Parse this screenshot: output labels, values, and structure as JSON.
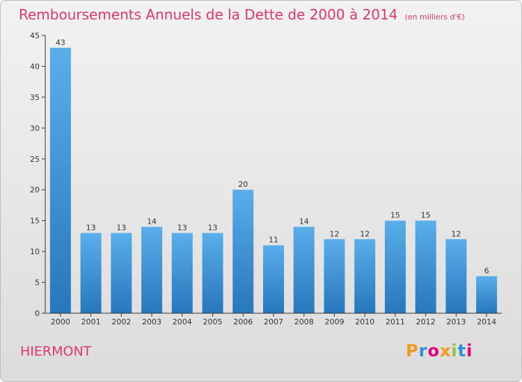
{
  "title": "Remboursements Annuels de la Dette de 2000 à 2014",
  "unit": "(en milliers d'€)",
  "commune": "HIERMONT",
  "logo": {
    "text": "Proxiti",
    "colors": [
      "#f39a1e",
      "#2c8fd6",
      "#e3007b",
      "#f39a1e",
      "#8cc63f",
      "#2c8fd6",
      "#e3007b"
    ]
  },
  "chart_data": {
    "type": "bar",
    "title": "Remboursements Annuels de la Dette de 2000 à 2014",
    "categories": [
      "2000",
      "2001",
      "2002",
      "2003",
      "2004",
      "2005",
      "2006",
      "2007",
      "2008",
      "2009",
      "2010",
      "2011",
      "2012",
      "2013",
      "2014"
    ],
    "values": [
      43,
      13,
      13,
      14,
      13,
      13,
      20,
      11,
      14,
      12,
      12,
      15,
      15,
      12,
      6
    ],
    "ylim": [
      0,
      45
    ],
    "yticks": [
      0,
      5,
      10,
      15,
      20,
      25,
      30,
      35,
      40,
      45
    ],
    "grid": false,
    "bar_color_top": "#5aaeea",
    "bar_color_bottom": "#2777bc"
  }
}
